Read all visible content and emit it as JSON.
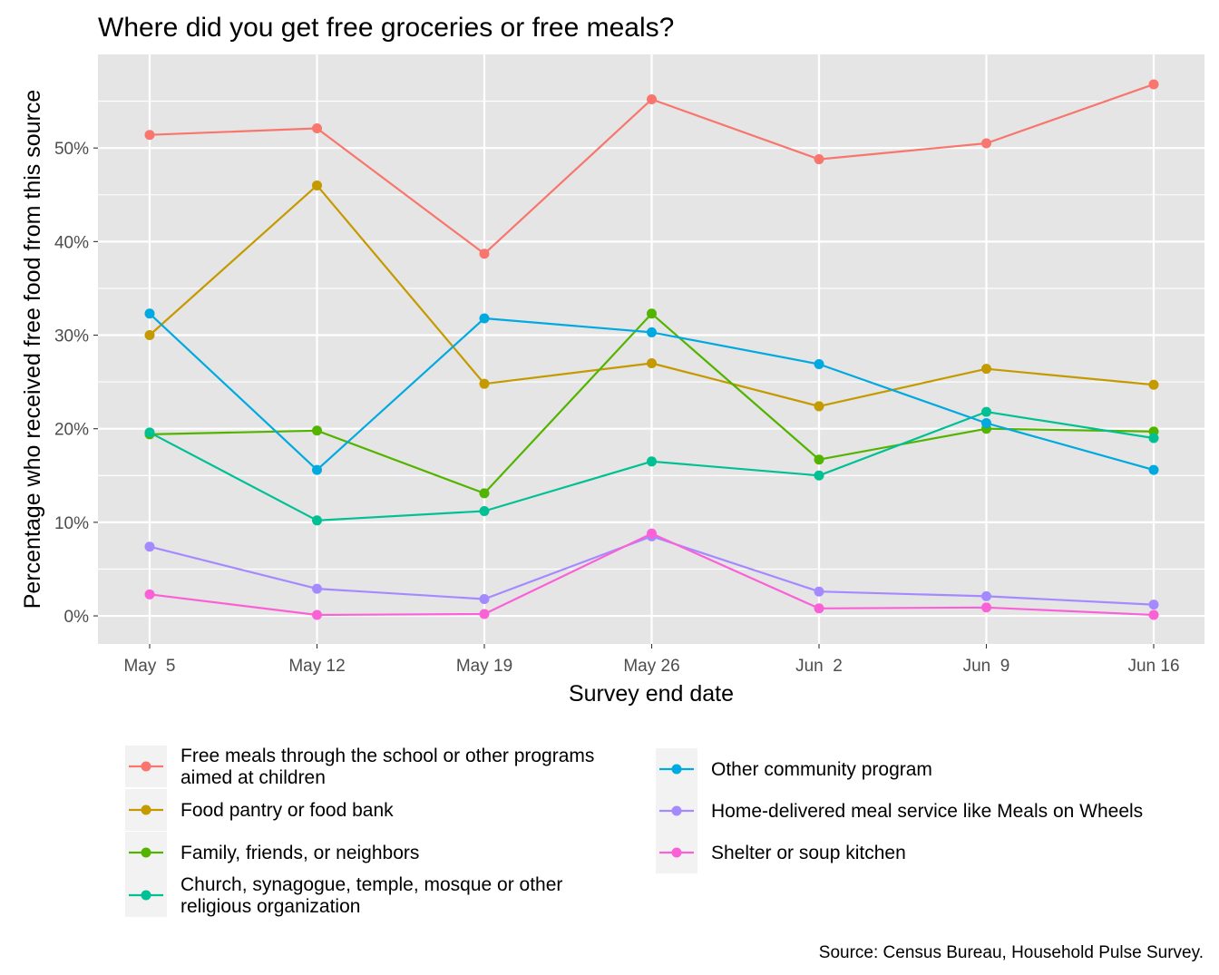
{
  "chart_data": {
    "type": "line",
    "title": "Where did you get free groceries or free meals?",
    "xlabel": "Survey end date",
    "ylabel": "Percentage who received free food from this source",
    "caption": "Source: Census Bureau, Household Pulse Survey.",
    "x": [
      "2020-05-05",
      "2020-05-12",
      "2020-05-19",
      "2020-05-26",
      "2020-06-02",
      "2020-06-09",
      "2020-06-16"
    ],
    "x_tick_labels": [
      "May  5",
      "May 12",
      "May 19",
      "May 26",
      "Jun  2",
      "Jun  9",
      "Jun 16"
    ],
    "y_ticks": [
      0,
      10,
      20,
      30,
      40,
      50
    ],
    "y_tick_labels": [
      "0%",
      "10%",
      "20%",
      "30%",
      "40%",
      "50%"
    ],
    "ylim": [
      -3,
      60
    ],
    "grid": true,
    "legend_position": "bottom",
    "series": [
      {
        "name": "Free meals through the school or other programs aimed at children",
        "name_lines": [
          "Free meals through the school or other programs",
          "aimed at children"
        ],
        "color": "#F8766D",
        "values": [
          51.4,
          52.1,
          38.7,
          55.2,
          48.8,
          50.5,
          56.8
        ]
      },
      {
        "name": "Food pantry or food bank",
        "name_lines": [
          "Food pantry or food bank"
        ],
        "color": "#C49A00",
        "values": [
          30.0,
          46.0,
          24.8,
          27.0,
          22.4,
          26.4,
          24.7
        ]
      },
      {
        "name": "Family, friends, or neighbors",
        "name_lines": [
          "Family, friends, or neighbors"
        ],
        "color": "#53B400",
        "values": [
          19.4,
          19.8,
          13.1,
          32.3,
          16.7,
          20.0,
          19.7
        ]
      },
      {
        "name": "Church, synagogue, temple, mosque or other religious organization",
        "name_lines": [
          "Church, synagogue, temple, mosque or other",
          "religious organization"
        ],
        "color": "#00C094",
        "values": [
          19.6,
          10.2,
          11.2,
          16.5,
          15.0,
          21.8,
          19.0
        ]
      },
      {
        "name": "Other community program",
        "name_lines": [
          "Other community program"
        ],
        "color": "#00A9E0",
        "values": [
          32.3,
          15.6,
          31.8,
          30.3,
          26.9,
          20.6,
          15.6
        ]
      },
      {
        "name": "Home-delivered meal service like Meals on Wheels",
        "name_lines": [
          "Home-delivered meal service like Meals on Wheels"
        ],
        "color": "#A58AFF",
        "values": [
          7.4,
          2.9,
          1.8,
          8.5,
          2.6,
          2.1,
          1.2
        ]
      },
      {
        "name": "Shelter or soup kitchen",
        "name_lines": [
          "Shelter or soup kitchen"
        ],
        "color": "#FB61D7",
        "values": [
          2.3,
          0.1,
          0.2,
          8.8,
          0.8,
          0.9,
          0.1
        ]
      }
    ]
  }
}
